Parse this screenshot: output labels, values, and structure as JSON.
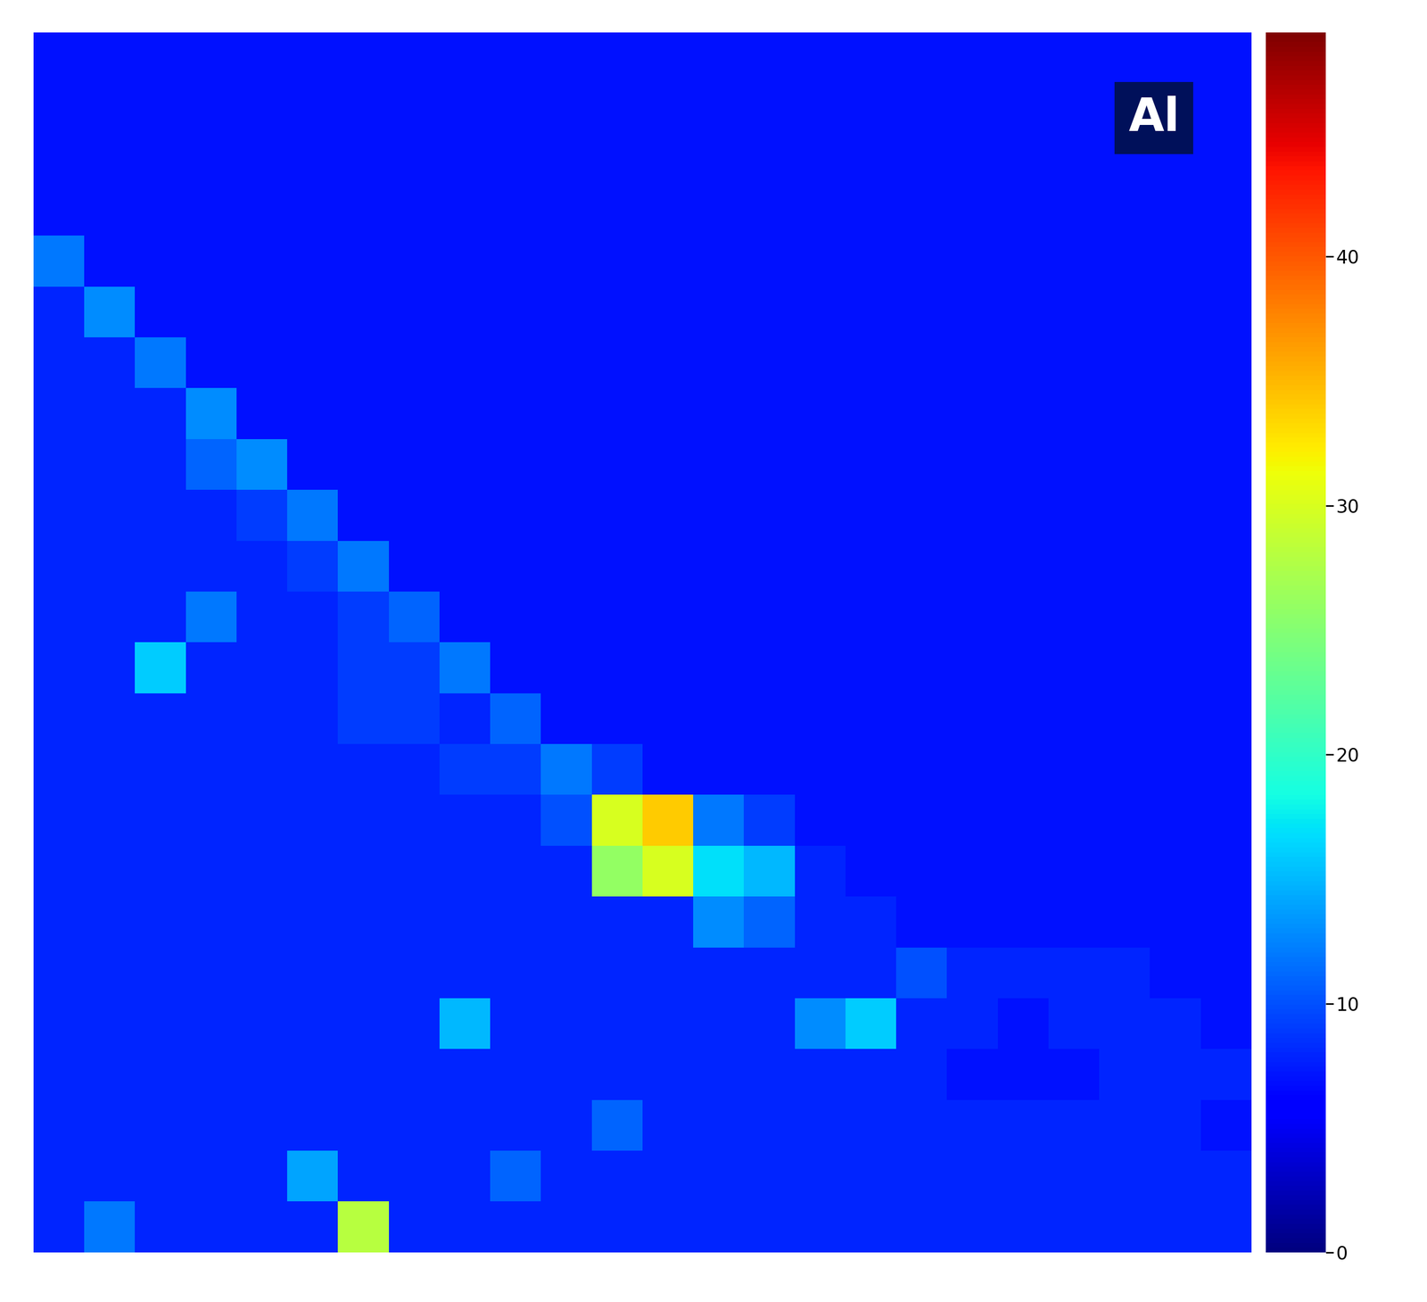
{
  "chart_data": {
    "type": "heatmap",
    "title": "Al",
    "tick_labels": false,
    "colorbar_range": [
      0,
      49
    ],
    "colorbar_ticks": [
      0,
      10,
      20,
      30,
      40
    ],
    "cells": [
      [
        7,
        7,
        7,
        7,
        7,
        7,
        7,
        7,
        7,
        7,
        7,
        7,
        7,
        7,
        7,
        7,
        7,
        7,
        7,
        7,
        7,
        7,
        7,
        7
      ],
      [
        7,
        7,
        7,
        7,
        7,
        7,
        7,
        7,
        7,
        7,
        7,
        7,
        7,
        7,
        7,
        7,
        7,
        7,
        7,
        7,
        7,
        7,
        7,
        7
      ],
      [
        7,
        7,
        7,
        7,
        7,
        7,
        7,
        7,
        7,
        7,
        7,
        7,
        7,
        7,
        7,
        7,
        7,
        7,
        7,
        7,
        7,
        7,
        7,
        7
      ],
      [
        7,
        7,
        7,
        7,
        7,
        7,
        7,
        7,
        7,
        7,
        7,
        7,
        7,
        7,
        7,
        7,
        7,
        7,
        7,
        7,
        7,
        7,
        7,
        7
      ],
      [
        12,
        7,
        7,
        7,
        7,
        7,
        7,
        7,
        7,
        7,
        7,
        7,
        7,
        7,
        7,
        7,
        7,
        7,
        7,
        7,
        7,
        7,
        7,
        7
      ],
      [
        8,
        13,
        7,
        7,
        7,
        7,
        7,
        7,
        7,
        7,
        7,
        7,
        7,
        7,
        7,
        7,
        7,
        7,
        7,
        7,
        7,
        7,
        7,
        7
      ],
      [
        8,
        8,
        12,
        7,
        7,
        7,
        7,
        7,
        7,
        7,
        7,
        7,
        7,
        7,
        7,
        7,
        7,
        7,
        7,
        7,
        7,
        7,
        7,
        7
      ],
      [
        8,
        8,
        8,
        13,
        7,
        7,
        7,
        7,
        7,
        7,
        7,
        7,
        7,
        7,
        7,
        7,
        7,
        7,
        7,
        7,
        7,
        7,
        7,
        7
      ],
      [
        8,
        8,
        8,
        11,
        13,
        7,
        7,
        7,
        7,
        7,
        7,
        7,
        7,
        7,
        7,
        7,
        7,
        7,
        7,
        7,
        7,
        7,
        7,
        7
      ],
      [
        8,
        8,
        8,
        8,
        9,
        12,
        7,
        7,
        7,
        7,
        7,
        7,
        7,
        7,
        7,
        7,
        7,
        7,
        7,
        7,
        7,
        7,
        7,
        7
      ],
      [
        8,
        8,
        8,
        8,
        8,
        9,
        12,
        7,
        7,
        7,
        7,
        7,
        7,
        7,
        7,
        7,
        7,
        7,
        7,
        7,
        7,
        7,
        7,
        7
      ],
      [
        8,
        8,
        8,
        12,
        8,
        8,
        9,
        11,
        7,
        7,
        7,
        7,
        7,
        7,
        7,
        7,
        7,
        7,
        7,
        7,
        7,
        7,
        7,
        7
      ],
      [
        8,
        8,
        16,
        8,
        8,
        8,
        9,
        9,
        12,
        7,
        7,
        7,
        7,
        7,
        7,
        7,
        7,
        7,
        7,
        7,
        7,
        7,
        7,
        7
      ],
      [
        8,
        8,
        8,
        8,
        8,
        8,
        9,
        9,
        8,
        11,
        7,
        7,
        7,
        7,
        7,
        7,
        7,
        7,
        7,
        7,
        7,
        7,
        7,
        7
      ],
      [
        8,
        8,
        8,
        8,
        8,
        8,
        8,
        8,
        9,
        9,
        12,
        9,
        7,
        7,
        7,
        7,
        7,
        7,
        7,
        7,
        7,
        7,
        7,
        7
      ],
      [
        8,
        8,
        8,
        8,
        8,
        8,
        8,
        8,
        8,
        8,
        10,
        30,
        34,
        12,
        9,
        7,
        7,
        7,
        7,
        7,
        7,
        7,
        7,
        7
      ],
      [
        8,
        8,
        8,
        8,
        8,
        8,
        8,
        8,
        8,
        8,
        8,
        26,
        30,
        17,
        15,
        8,
        7,
        7,
        7,
        7,
        7,
        7,
        7,
        7
      ],
      [
        8,
        8,
        8,
        8,
        8,
        8,
        8,
        8,
        8,
        8,
        8,
        8,
        8,
        13,
        11,
        8,
        8,
        7,
        7,
        7,
        7,
        7,
        7,
        7
      ],
      [
        8,
        8,
        8,
        8,
        8,
        8,
        8,
        8,
        8,
        8,
        8,
        8,
        8,
        8,
        8,
        8,
        8,
        10,
        8,
        8,
        8,
        8,
        7,
        7
      ],
      [
        8,
        8,
        8,
        8,
        8,
        8,
        8,
        8,
        15,
        8,
        8,
        8,
        8,
        8,
        8,
        13,
        16,
        8,
        8,
        7,
        8,
        8,
        8,
        7
      ],
      [
        8,
        8,
        8,
        8,
        8,
        8,
        8,
        8,
        8,
        8,
        8,
        8,
        8,
        8,
        8,
        8,
        8,
        8,
        7,
        7,
        7,
        8,
        8,
        8
      ],
      [
        8,
        8,
        8,
        8,
        8,
        8,
        8,
        8,
        8,
        8,
        8,
        11,
        8,
        8,
        8,
        8,
        8,
        8,
        8,
        8,
        8,
        8,
        8,
        7
      ],
      [
        8,
        8,
        8,
        8,
        8,
        14,
        8,
        8,
        8,
        11,
        8,
        8,
        8,
        8,
        8,
        8,
        8,
        8,
        8,
        8,
        8,
        8,
        8,
        8
      ],
      [
        8,
        12,
        8,
        8,
        8,
        8,
        28,
        8,
        8,
        8,
        8,
        8,
        8,
        8,
        8,
        8,
        8,
        8,
        8,
        8,
        8,
        8,
        8,
        8
      ]
    ]
  }
}
